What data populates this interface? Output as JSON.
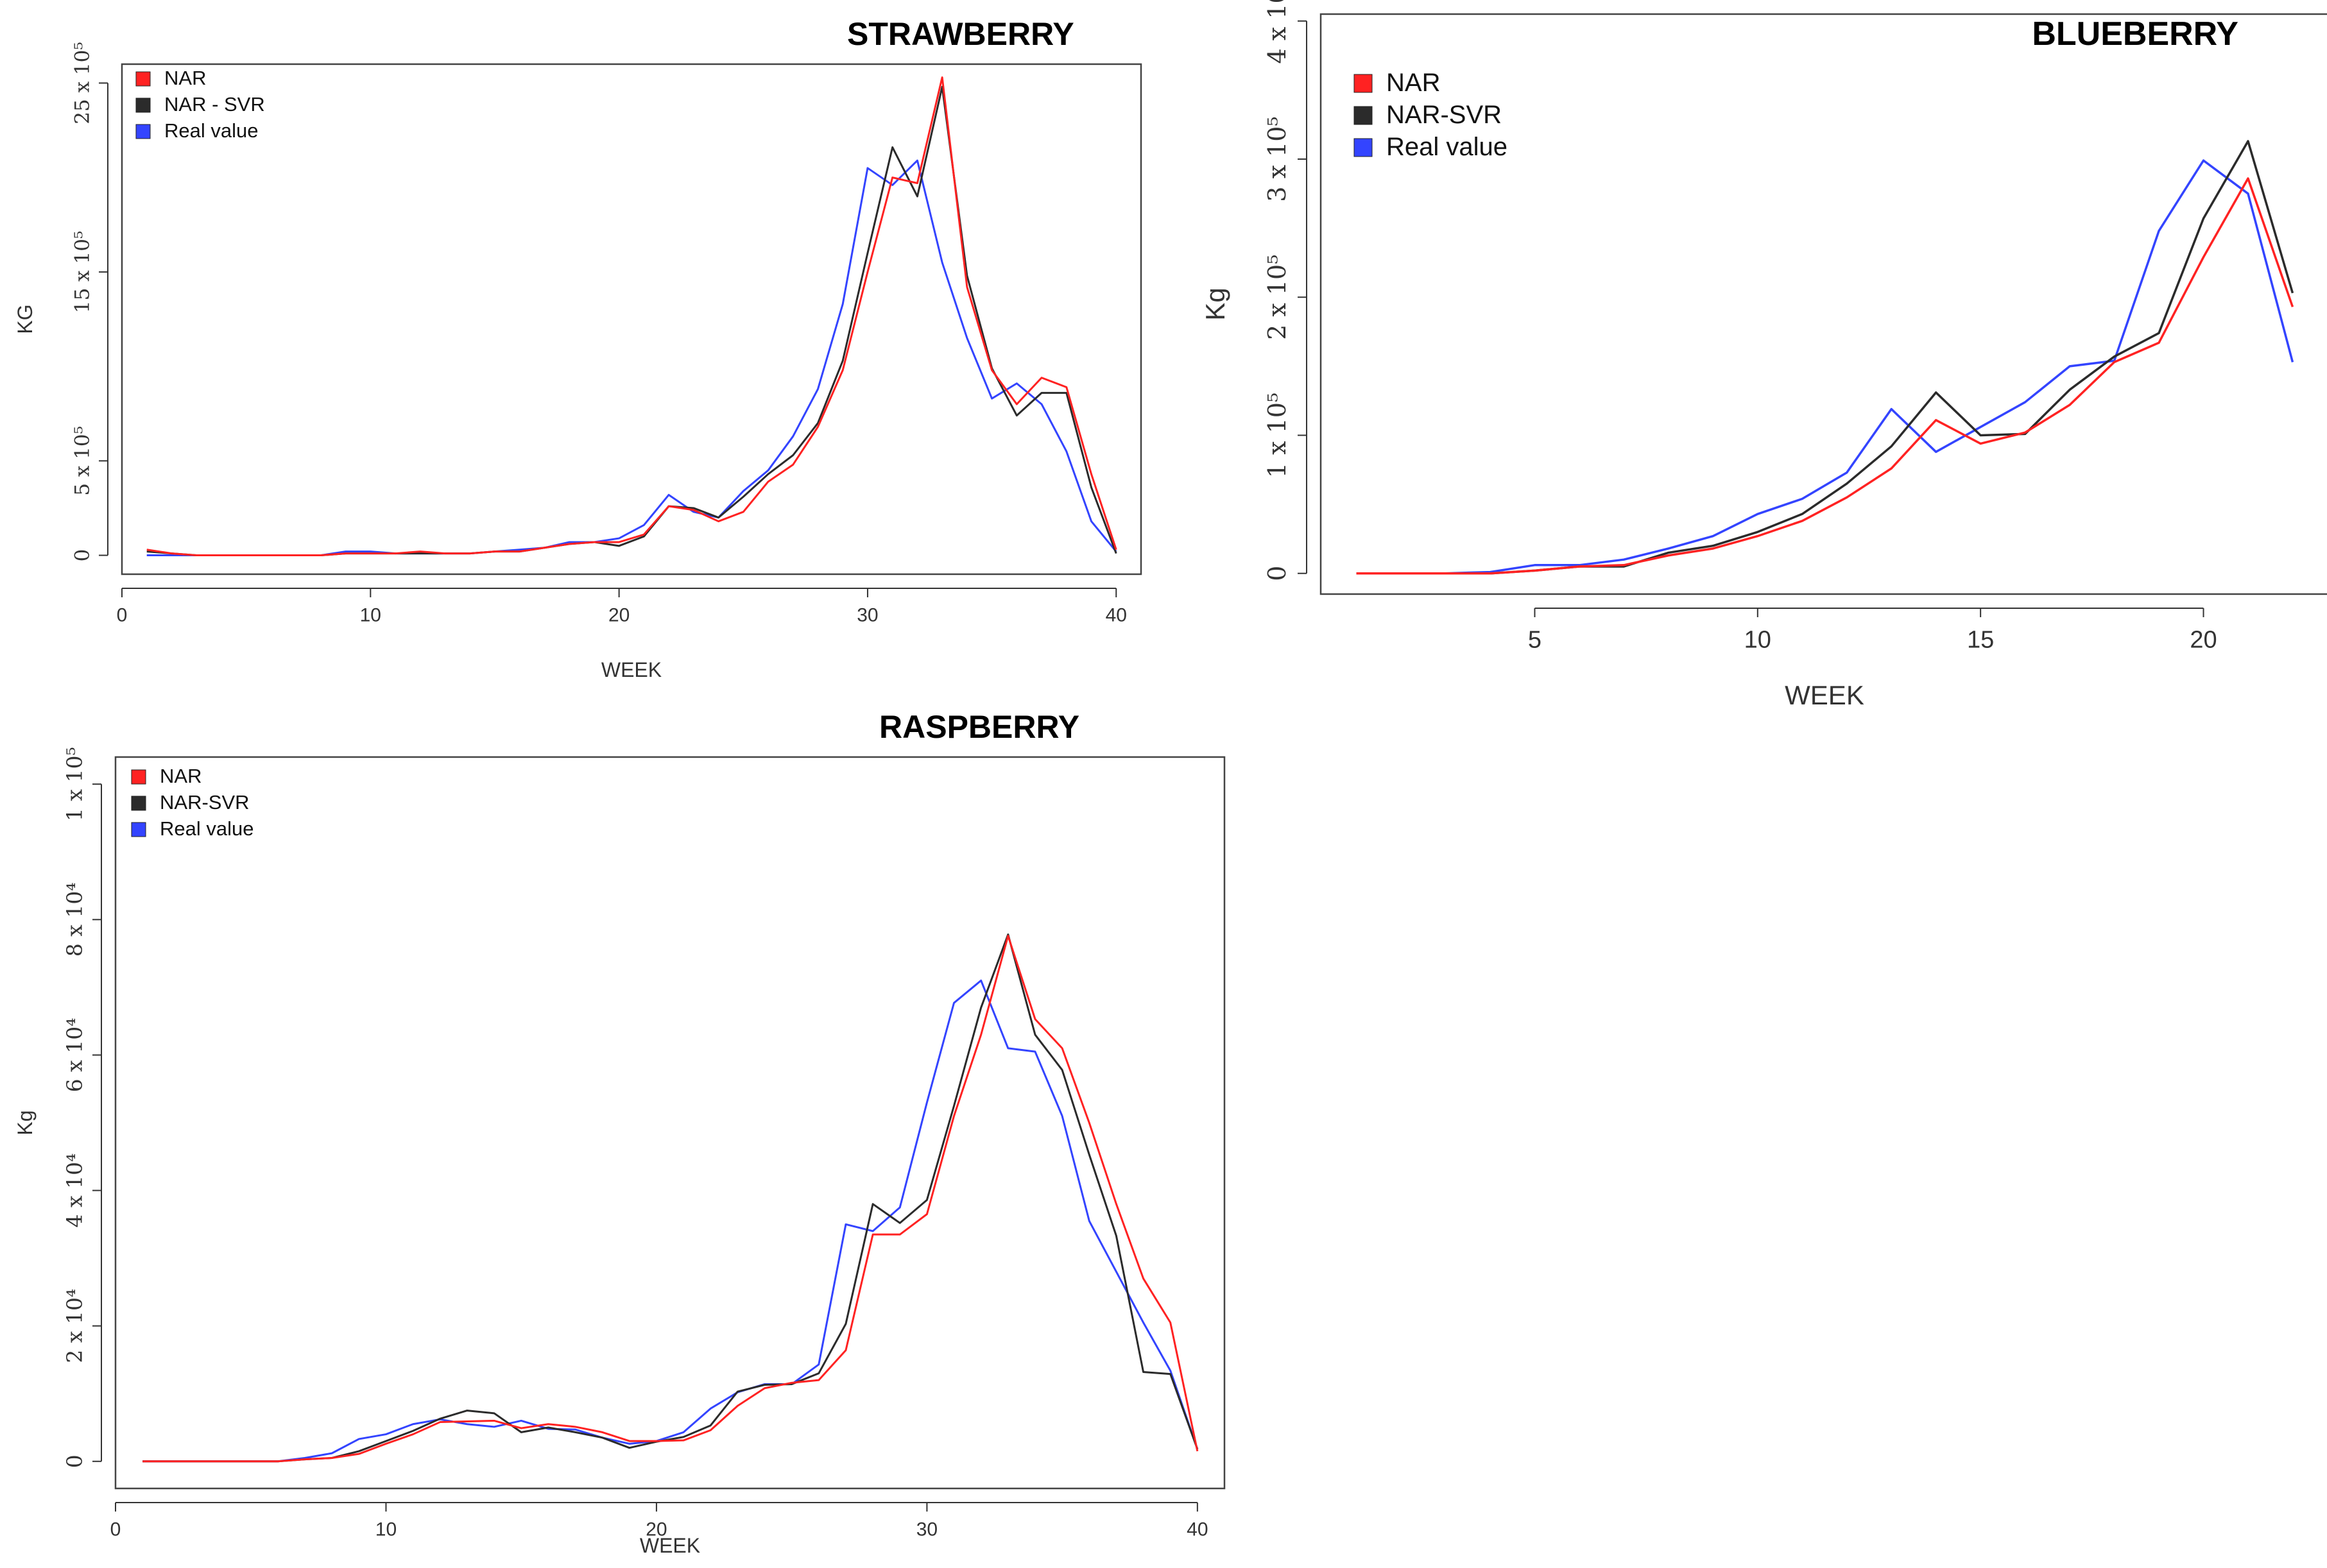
{
  "colors": {
    "NAR": "#ff2222",
    "NAR_SVR": "#2b2b2b",
    "Real": "#3344ff",
    "frame": "#444444"
  },
  "chart_data": [
    {
      "id": "strawberry",
      "type": "line",
      "title": "STRAWBERRY",
      "xlabel": "WEEK",
      "ylabel": "KG",
      "xlim": [
        0,
        41
      ],
      "ylim": [
        -1,
        26
      ],
      "xticks": [
        0,
        10,
        20,
        30,
        40
      ],
      "xtick_labels": [
        "0",
        "10",
        "20",
        "30",
        "40"
      ],
      "yticks": [
        0,
        5,
        15,
        25
      ],
      "ytick_labels": [
        "0",
        "5 x 10⁵",
        "15 x 10⁵",
        "25 x 10⁵"
      ],
      "legend": [
        "NAR",
        "NAR - SVR",
        "Real value"
      ],
      "x": [
        1,
        2,
        3,
        4,
        5,
        6,
        7,
        8,
        9,
        10,
        11,
        12,
        13,
        14,
        15,
        16,
        17,
        18,
        19,
        20,
        21,
        22,
        23,
        24,
        25,
        26,
        27,
        28,
        29,
        30,
        31,
        32,
        33,
        34,
        35,
        36,
        37,
        38,
        39,
        40
      ],
      "series": [
        {
          "name": "NAR",
          "key": "NAR",
          "values": [
            0.3,
            0.1,
            0,
            0,
            0,
            0,
            0,
            0,
            0.1,
            0.1,
            0.1,
            0.2,
            0.1,
            0.1,
            0.2,
            0.2,
            0.4,
            0.6,
            0.7,
            0.7,
            1.1,
            2.6,
            2.4,
            1.8,
            2.3,
            3.9,
            4.8,
            6.8,
            9.8,
            15,
            20,
            19.7,
            25.3,
            14.2,
            9.8,
            8.0,
            9.4,
            8.9,
            4.3,
            0.3
          ]
        },
        {
          "name": "NAR - SVR",
          "key": "NAR_SVR",
          "values": [
            0.2,
            0.1,
            0,
            0,
            0,
            0,
            0,
            0,
            0.1,
            0.1,
            0.1,
            0.1,
            0.1,
            0.1,
            0.2,
            0.2,
            0.4,
            0.6,
            0.7,
            0.5,
            1.0,
            2.6,
            2.5,
            2.0,
            3.1,
            4.3,
            5.3,
            7.0,
            10.3,
            16.0,
            21.6,
            19.0,
            24.8,
            14.8,
            9.9,
            7.4,
            8.6,
            8.6,
            3.6,
            0.1
          ]
        },
        {
          "name": "Real value",
          "key": "Real",
          "values": [
            0,
            0,
            0,
            0,
            0,
            0,
            0,
            0,
            0.2,
            0.2,
            0.1,
            0.1,
            0.1,
            0.1,
            0.2,
            0.3,
            0.4,
            0.7,
            0.7,
            0.9,
            1.6,
            3.2,
            2.3,
            2.0,
            3.4,
            4.5,
            6.3,
            8.8,
            13.3,
            20.5,
            19.6,
            20.9,
            15.5,
            11.5,
            8.3,
            9.1,
            8.0,
            5.5,
            1.8,
            0.2
          ]
        }
      ]
    },
    {
      "id": "blueberry",
      "type": "line",
      "title": "BLUEBERRY",
      "xlabel": "WEEK",
      "ylabel": "Kg",
      "xlim": [
        0.2,
        22.8
      ],
      "ylim": [
        -0.15,
        4.05
      ],
      "xticks": [
        5,
        10,
        15,
        20
      ],
      "xtick_labels": [
        "5",
        "10",
        "15",
        "20"
      ],
      "yticks": [
        0,
        1,
        2,
        3,
        4
      ],
      "ytick_labels": [
        "0",
        "1 x 10⁵",
        "2 x 10⁵",
        "3 x 10⁵",
        "4 x 10⁵"
      ],
      "legend": [
        "NAR",
        "NAR-SVR",
        "Real value"
      ],
      "x": [
        1,
        2,
        3,
        4,
        5,
        6,
        7,
        8,
        9,
        10,
        11,
        12,
        13,
        14,
        15,
        16,
        17,
        18,
        19,
        20,
        21,
        22
      ],
      "series": [
        {
          "name": "NAR",
          "key": "NAR",
          "values": [
            0,
            0,
            0,
            0,
            0.02,
            0.05,
            0.06,
            0.13,
            0.18,
            0.27,
            0.38,
            0.55,
            0.76,
            1.11,
            0.94,
            1.02,
            1.22,
            1.53,
            1.67,
            2.29,
            2.86,
            1.93
          ]
        },
        {
          "name": "NAR-SVR",
          "key": "NAR_SVR",
          "values": [
            0,
            0,
            0,
            0,
            0.02,
            0.05,
            0.05,
            0.15,
            0.2,
            0.3,
            0.43,
            0.65,
            0.92,
            1.31,
            1.0,
            1.01,
            1.33,
            1.57,
            1.74,
            2.57,
            3.13,
            2.03
          ]
        },
        {
          "name": "Real value",
          "key": "Real",
          "values": [
            0,
            0,
            0,
            0.01,
            0.06,
            0.06,
            0.1,
            0.18,
            0.27,
            0.43,
            0.54,
            0.73,
            1.19,
            0.88,
            1.06,
            1.24,
            1.5,
            1.54,
            2.48,
            2.99,
            2.75,
            1.53
          ]
        }
      ]
    },
    {
      "id": "raspberry",
      "type": "line",
      "title": "RASPBERRY",
      "xlabel": "WEEK",
      "ylabel": "Kg",
      "xlim": [
        0,
        41
      ],
      "ylim": [
        -4,
        104
      ],
      "xticks": [
        0,
        10,
        20,
        30,
        40
      ],
      "xtick_labels": [
        "0",
        "10",
        "20",
        "30",
        "40"
      ],
      "yticks": [
        0,
        20,
        40,
        60,
        80,
        100
      ],
      "ytick_labels": [
        "0",
        "2 x 10⁴",
        "4 x 10⁴",
        "6 x 10⁴",
        "8 x 10⁴",
        "1 x 10⁵"
      ],
      "legend": [
        "NAR",
        "NAR-SVR",
        "Real value"
      ],
      "x": [
        1,
        2,
        3,
        4,
        5,
        6,
        7,
        8,
        9,
        10,
        11,
        12,
        13,
        14,
        15,
        16,
        17,
        18,
        19,
        20,
        21,
        22,
        23,
        24,
        25,
        26,
        27,
        28,
        29,
        30,
        31,
        32,
        33,
        34,
        35,
        36,
        37,
        38,
        39,
        40
      ],
      "series": [
        {
          "name": "NAR",
          "key": "NAR",
          "values": [
            0,
            0,
            0,
            0,
            0,
            0,
            0.3,
            0.5,
            1.1,
            2.6,
            4.0,
            5.8,
            5.9,
            6.0,
            4.9,
            5.5,
            5.1,
            4.3,
            3.0,
            3.0,
            3.1,
            4.6,
            8.2,
            10.8,
            11.6,
            12.0,
            16.4,
            33.5,
            33.5,
            36.5,
            51.0,
            63.0,
            77.6,
            65.3,
            61.0,
            50.0,
            38.0,
            27.0,
            20.5,
            1.5
          ]
        },
        {
          "name": "NAR-SVR",
          "key": "NAR_SVR",
          "values": [
            0,
            0,
            0,
            0,
            0,
            0,
            0.3,
            0.5,
            1.5,
            3.0,
            4.5,
            6.3,
            7.5,
            7.1,
            4.3,
            5.0,
            4.3,
            3.5,
            2.0,
            2.9,
            3.6,
            5.3,
            10.3,
            11.3,
            11.4,
            13.0,
            20.3,
            38.0,
            35.2,
            38.6,
            52.5,
            67.0,
            77.8,
            63.0,
            57.8,
            45.3,
            33.3,
            13.2,
            12.9,
            1.8
          ]
        },
        {
          "name": "Real value",
          "key": "Real",
          "values": [
            0,
            0,
            0,
            0,
            0,
            0,
            0.5,
            1.2,
            3.3,
            4.0,
            5.5,
            6.2,
            5.5,
            5.1,
            6.0,
            4.8,
            4.7,
            3.5,
            2.6,
            3.0,
            4.3,
            7.8,
            10.2,
            11.4,
            11.4,
            14.3,
            35.0,
            34.0,
            37.5,
            53.0,
            67.7,
            71.0,
            61.0,
            60.5,
            51.0,
            35.5,
            28.0,
            20.5,
            13.4,
            1.8
          ]
        }
      ]
    }
  ]
}
